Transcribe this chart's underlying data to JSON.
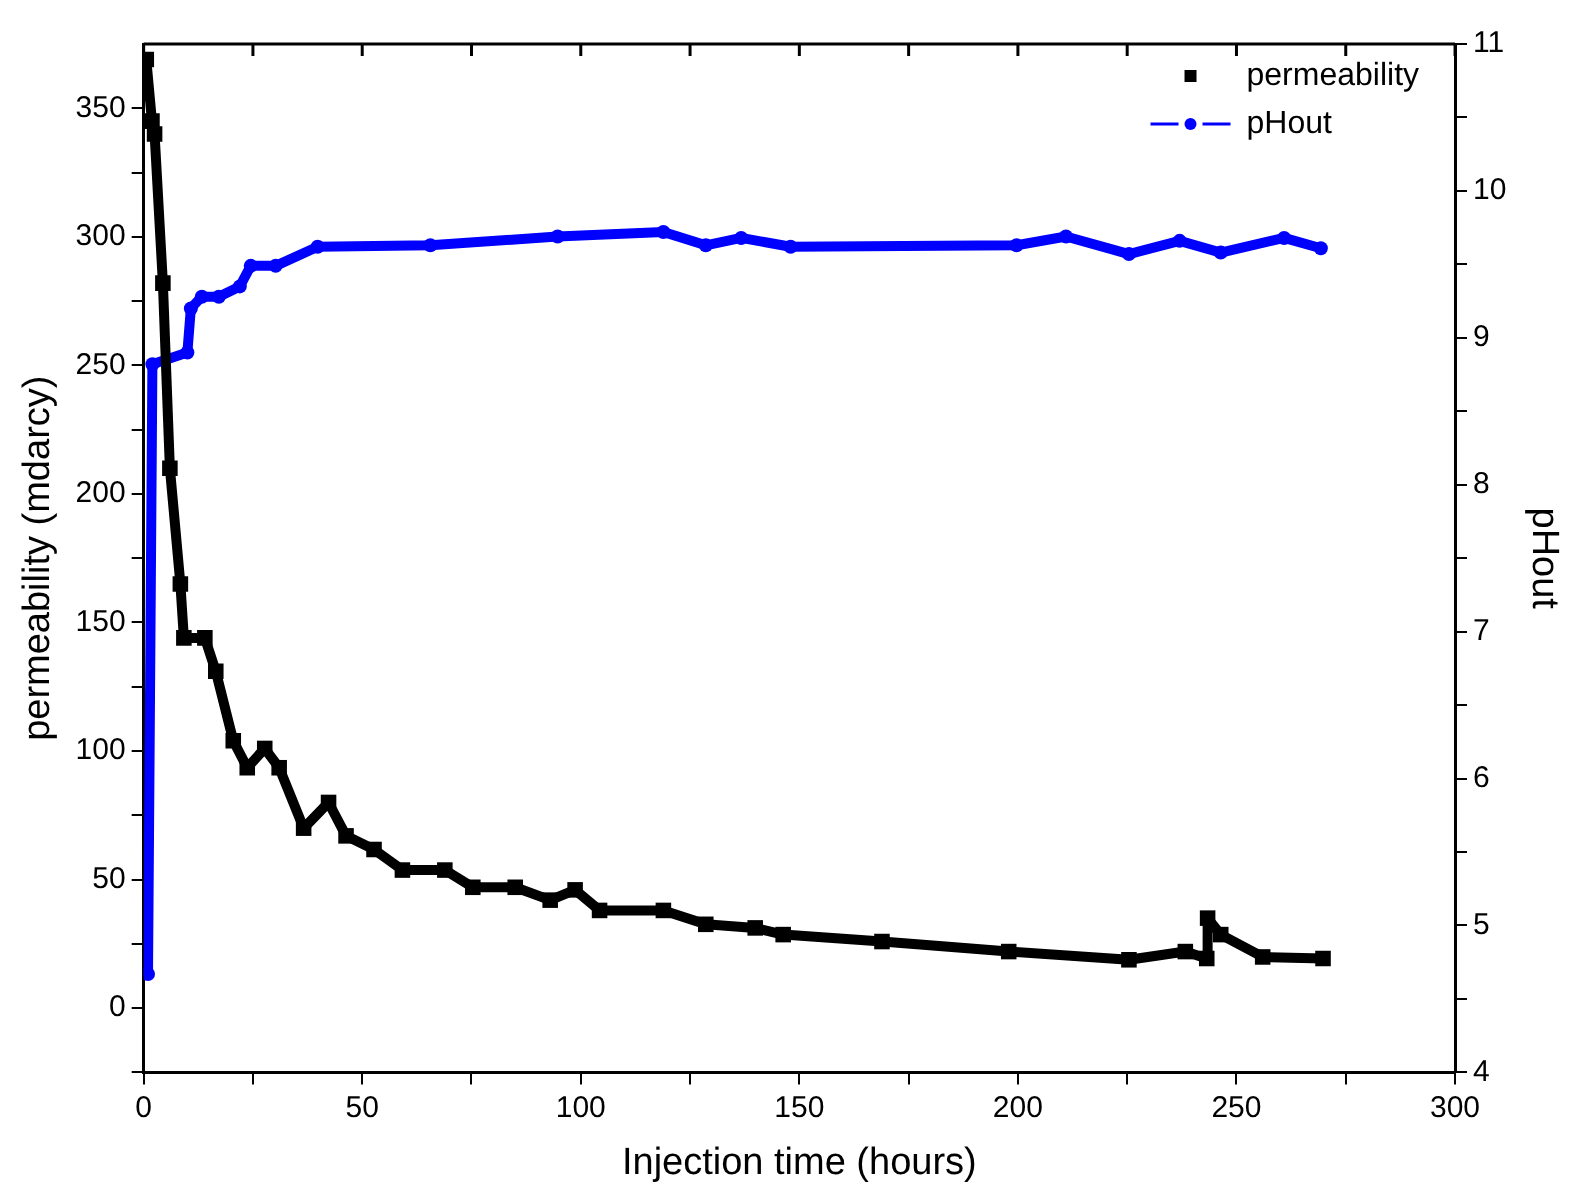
{
  "chart_data": {
    "type": "line",
    "xlabel": "Injection time (hours)",
    "ylabel": "permeability (mdarcy)",
    "y2label": "pHout",
    "xlim": [
      0,
      300
    ],
    "xticks": [
      0,
      {
        "value": 25,
        "label": null
      },
      50,
      {
        "value": 75,
        "label": null
      },
      100,
      {
        "value": 125,
        "label": null
      },
      150,
      {
        "value": 175,
        "label": null
      },
      200,
      {
        "value": 225,
        "label": null
      },
      250,
      {
        "value": 275,
        "label": null
      },
      300
    ],
    "ylim": [
      -25,
      375
    ],
    "yticks": [
      {
        "value": -25,
        "label": null
      },
      0,
      {
        "value": 25,
        "label": null
      },
      50,
      {
        "value": 75,
        "label": null
      },
      100,
      {
        "value": 125,
        "label": null
      },
      150,
      {
        "value": 175,
        "label": null
      },
      200,
      {
        "value": 225,
        "label": null
      },
      250,
      {
        "value": 275,
        "label": null
      },
      300,
      {
        "value": 325,
        "label": null
      },
      350
    ],
    "y2lim": [
      4,
      11
    ],
    "y2ticks": [
      4,
      {
        "value": 4.5,
        "label": null
      },
      5,
      {
        "value": 5.5,
        "label": null
      },
      6,
      {
        "value": 6.5,
        "label": null
      },
      7,
      {
        "value": 7.5,
        "label": null
      },
      8,
      {
        "value": 8.5,
        "label": null
      },
      9,
      {
        "value": 9.5,
        "label": null
      },
      10,
      {
        "value": 10.5,
        "label": null
      },
      11
    ],
    "grid": false,
    "legend": "top right",
    "series": [
      {
        "name": "permeability",
        "color": "#000000",
        "marker": "square",
        "x": [
          0.6,
          1.9,
          2.5,
          4.4,
          6,
          8.4,
          9.2,
          14,
          16.5,
          20.5,
          23.7,
          27.7,
          31,
          36.6,
          42.3,
          46.3,
          52.7,
          59.2,
          68.9,
          75.3,
          85,
          93,
          98.7,
          104.3,
          118.9,
          128.6,
          139.9,
          146.3,
          168.9,
          197.9,
          225.4,
          238.3,
          243.2,
          243.4,
          246.4,
          256,
          269.8
        ],
        "values": [
          369,
          345,
          340,
          282,
          210,
          165,
          144,
          144,
          131,
          104,
          93.5,
          101,
          93.5,
          70,
          80,
          67,
          61.7,
          53.7,
          53.7,
          47,
          47,
          42,
          46,
          38,
          38,
          32.6,
          31.2,
          28.6,
          25.9,
          22,
          18.8,
          22,
          19.3,
          35,
          28.6,
          19.9,
          19.3
        ]
      },
      {
        "name": "pHout",
        "color": "#0000ff",
        "marker": "circle",
        "axis": "y2",
        "x": [
          1,
          2,
          10,
          10.8,
          13.3,
          17.2,
          22,
          24.5,
          30.2,
          39.8,
          65.6,
          94.7,
          118.9,
          128.6,
          136.7,
          148,
          199.7,
          211,
          225.4,
          237,
          246.4,
          260.9,
          269.3
        ],
        "values": [
          4.67,
          8.82,
          8.9,
          9.2,
          9.28,
          9.28,
          9.35,
          9.49,
          9.49,
          9.62,
          9.63,
          9.69,
          9.72,
          9.63,
          9.68,
          9.62,
          9.63,
          9.69,
          9.57,
          9.66,
          9.58,
          9.68,
          9.61
        ]
      }
    ]
  }
}
